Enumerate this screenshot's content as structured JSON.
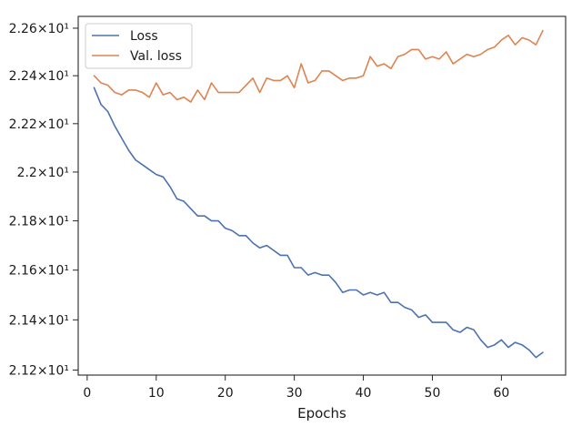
{
  "chart_data": {
    "type": "line",
    "xlabel": "Epochs",
    "ylabel": "",
    "scale_y": "log",
    "grid": false,
    "legend": "top-left",
    "xlim": [
      -1.3,
      69.3
    ],
    "ylim": [
      21.18,
      22.65
    ],
    "x_ticks": [
      0,
      10,
      20,
      30,
      40,
      50,
      60
    ],
    "x_tick_labels": [
      "0",
      "10",
      "20",
      "30",
      "40",
      "50",
      "60"
    ],
    "y_ticks": [
      21.2,
      21.4,
      21.6,
      21.8,
      22.0,
      22.2,
      22.4,
      22.6
    ],
    "y_tick_labels": [
      "2.12×10¹",
      "2.14×10¹",
      "2.16×10¹",
      "2.18×10¹",
      "2.2×10¹",
      "2.22×10¹",
      "2.24×10¹",
      "2.26×10¹"
    ],
    "x": [
      1,
      2,
      3,
      4,
      5,
      6,
      7,
      8,
      9,
      10,
      11,
      12,
      13,
      14,
      15,
      16,
      17,
      18,
      19,
      20,
      21,
      22,
      23,
      24,
      25,
      26,
      27,
      28,
      29,
      30,
      31,
      32,
      33,
      34,
      35,
      36,
      37,
      38,
      39,
      40,
      41,
      42,
      43,
      44,
      45,
      46,
      47,
      48,
      49,
      50,
      51,
      52,
      53,
      54,
      55,
      56,
      57,
      58,
      59,
      60,
      61,
      62,
      63,
      64,
      65,
      66
    ],
    "series": [
      {
        "name": "Loss",
        "color": "#4c72b0",
        "values": [
          22.35,
          22.28,
          22.25,
          22.19,
          22.14,
          22.09,
          22.05,
          22.03,
          22.01,
          21.99,
          21.98,
          21.94,
          21.89,
          21.88,
          21.85,
          21.82,
          21.82,
          21.8,
          21.8,
          21.77,
          21.76,
          21.74,
          21.74,
          21.71,
          21.69,
          21.7,
          21.68,
          21.66,
          21.66,
          21.61,
          21.61,
          21.58,
          21.59,
          21.58,
          21.58,
          21.55,
          21.51,
          21.52,
          21.52,
          21.5,
          21.51,
          21.5,
          21.51,
          21.47,
          21.47,
          21.45,
          21.44,
          21.41,
          21.42,
          21.39,
          21.39,
          21.39,
          21.36,
          21.35,
          21.37,
          21.36,
          21.32,
          21.29,
          21.3,
          21.32,
          21.29,
          21.31,
          21.3,
          21.28,
          21.25,
          21.27
        ]
      },
      {
        "name": "Val. loss",
        "color": "#dd8452",
        "values": [
          22.4,
          22.37,
          22.36,
          22.33,
          22.32,
          22.34,
          22.34,
          22.33,
          22.31,
          22.37,
          22.32,
          22.33,
          22.3,
          22.31,
          22.29,
          22.34,
          22.3,
          22.37,
          22.33,
          22.33,
          22.33,
          22.33,
          22.36,
          22.39,
          22.33,
          22.39,
          22.38,
          22.38,
          22.4,
          22.35,
          22.45,
          22.37,
          22.38,
          22.42,
          22.42,
          22.4,
          22.38,
          22.39,
          22.39,
          22.4,
          22.48,
          22.44,
          22.45,
          22.43,
          22.48,
          22.49,
          22.51,
          22.51,
          22.47,
          22.48,
          22.47,
          22.5,
          22.45,
          22.47,
          22.49,
          22.48,
          22.49,
          22.51,
          22.52,
          22.55,
          22.57,
          22.53,
          22.56,
          22.55,
          22.53,
          22.59
        ]
      }
    ]
  }
}
